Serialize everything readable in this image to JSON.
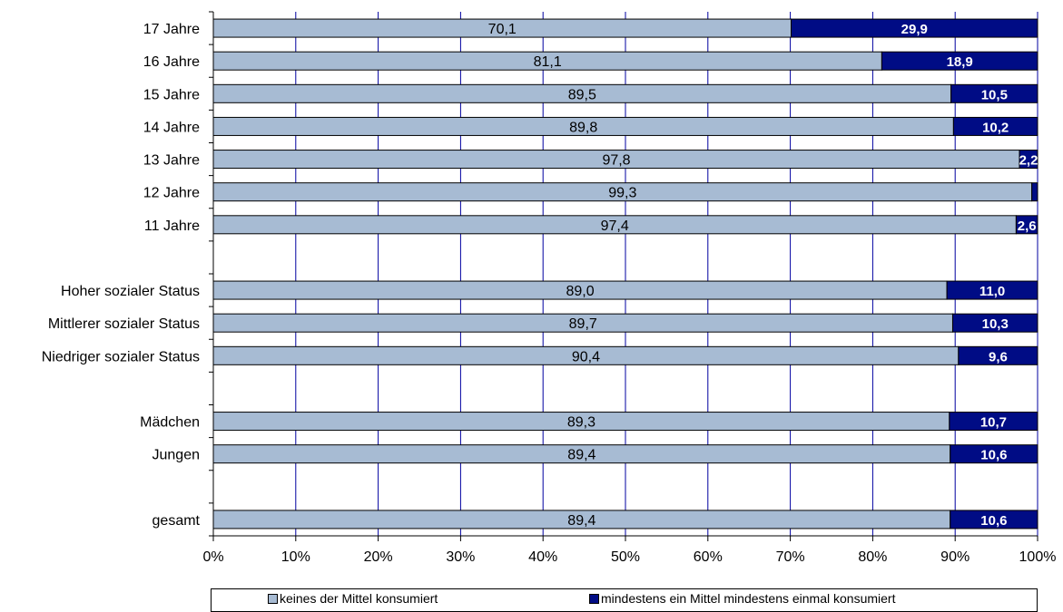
{
  "chart_data": {
    "type": "bar",
    "orientation": "horizontal",
    "stacked": "percent",
    "categories": [
      "17 Jahre",
      "16 Jahre",
      "15 Jahre",
      "14 Jahre",
      "13 Jahre",
      "12 Jahre",
      "11 Jahre",
      "",
      "Hoher sozialer Status",
      "Mittlerer sozialer Status",
      "Niedriger sozialer Status",
      "",
      "Mädchen",
      "Jungen",
      "",
      "gesamt"
    ],
    "series": [
      {
        "name": "keines der Mittel konsumiert",
        "color": "#a7bbd3",
        "values": [
          70.1,
          81.1,
          89.5,
          89.8,
          97.8,
          99.3,
          97.4,
          null,
          89.0,
          89.7,
          90.4,
          null,
          89.3,
          89.4,
          null,
          89.4
        ],
        "labels": [
          "70,1",
          "81,1",
          "89,5",
          "89,8",
          "97,8",
          "99,3",
          "97,4",
          "",
          "89,0",
          "89,7",
          "90,4",
          "",
          "89,3",
          "89,4",
          "",
          "89,4"
        ]
      },
      {
        "name": "mindestens ein Mittel mindestens einmal konsumiert",
        "color": "#000c85",
        "values": [
          29.9,
          18.9,
          10.5,
          10.2,
          2.2,
          0.7,
          2.6,
          null,
          11.0,
          10.3,
          9.6,
          null,
          10.7,
          10.6,
          null,
          10.6
        ],
        "labels": [
          "29,9",
          "18,9",
          "10,5",
          "10,2",
          "2,2",
          "",
          "2,6",
          "",
          "11,0",
          "10,3",
          "9,6",
          "",
          "10,7",
          "10,6",
          "",
          "10,6"
        ]
      }
    ],
    "xlim": [
      0,
      100
    ],
    "x_ticks": [
      "0%",
      "10%",
      "20%",
      "30%",
      "40%",
      "50%",
      "60%",
      "70%",
      "80%",
      "90%",
      "100%"
    ],
    "grid": "vertical",
    "grid_color": "#0000a0",
    "title": "",
    "xlabel": "",
    "ylabel": "",
    "legend_position": "bottom"
  },
  "legend": {
    "items": [
      {
        "label": "keines der Mittel konsumiert",
        "color": "#a7bbd3"
      },
      {
        "label": "mindestens ein Mittel mindestens einmal konsumiert",
        "color": "#000c85"
      }
    ]
  }
}
